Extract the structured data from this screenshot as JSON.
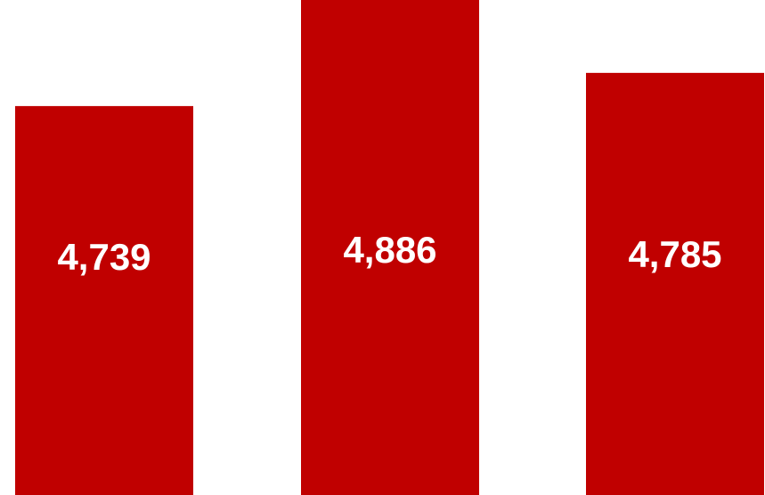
{
  "chart_data": {
    "type": "bar",
    "categories": [
      "",
      "",
      ""
    ],
    "values": [
      4739,
      4886,
      4785
    ],
    "data_labels": [
      "4,739",
      "4,886",
      "4,785"
    ],
    "title": "",
    "xlabel": "",
    "ylabel": "",
    "ylim": [
      0,
      4886
    ],
    "grid": false,
    "legend": "none",
    "bar_color": "#C00000",
    "label_color": "#FFFFFF"
  }
}
